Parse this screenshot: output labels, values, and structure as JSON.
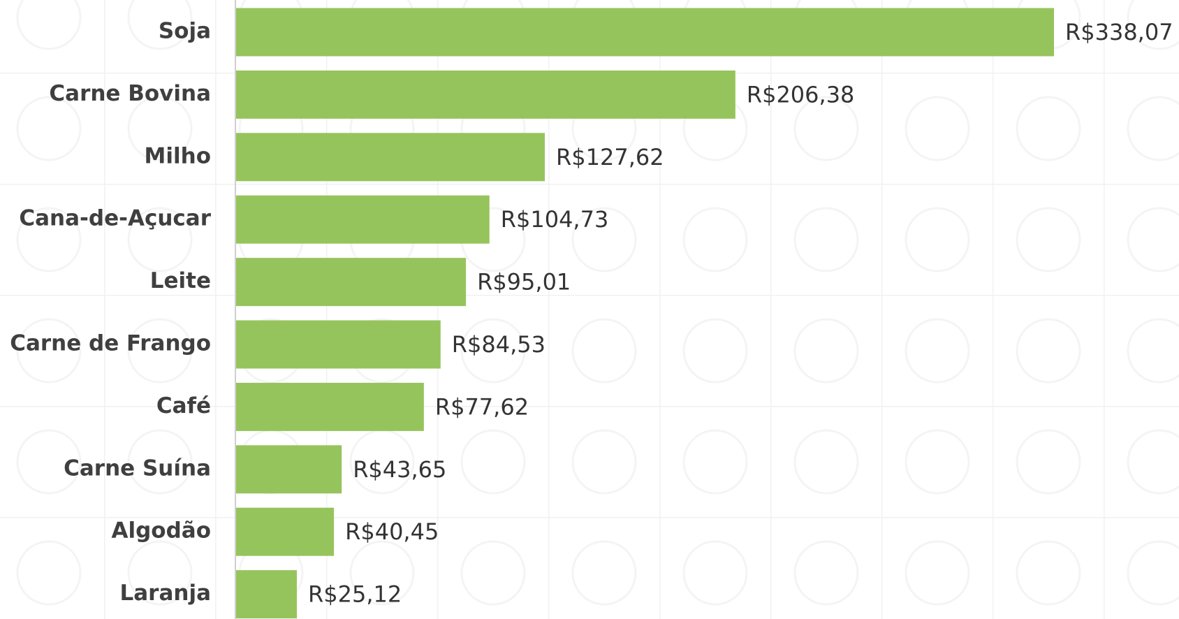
{
  "chart_data": {
    "type": "bar",
    "orientation": "horizontal",
    "categories": [
      "Soja",
      "Carne Bovina",
      "Milho",
      "Cana-de-Açucar",
      "Leite",
      "Carne de Frango",
      "Café",
      "Carne Suína",
      "Algodão",
      "Laranja"
    ],
    "values": [
      338.07,
      206.38,
      127.62,
      104.73,
      95.01,
      84.53,
      77.62,
      43.65,
      40.45,
      25.12
    ],
    "value_labels": [
      "R$338,07",
      "R$206,38",
      "R$127,62",
      "R$104,73",
      "R$95,01",
      "R$84,53",
      "R$77,62",
      "R$43,65",
      "R$40,45",
      "R$25,12"
    ],
    "color": "#96c45c"
  }
}
